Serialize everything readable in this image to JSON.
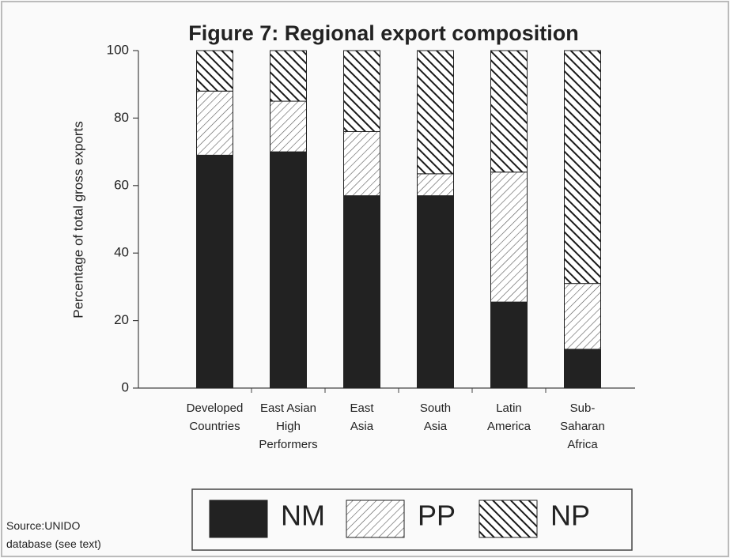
{
  "chart_data": {
    "type": "stacked-bar",
    "title": "Figure 7:  Regional export composition",
    "y_label": "Percentage of total gross exports",
    "categories": [
      "Developed Countries",
      "East Asian High Performers",
      "East Asia",
      "South Asia",
      "Latin America",
      "Sub-Saharan Africa"
    ],
    "series": [
      {
        "name": "NM",
        "color": "#222222",
        "pattern": "solid",
        "values": [
          69,
          70,
          57,
          57,
          25.5,
          11.5
        ]
      },
      {
        "name": "PP",
        "color": "#555555",
        "pattern": "hatch-light",
        "values": [
          19,
          15,
          19,
          6.5,
          38.5,
          19.5
        ]
      },
      {
        "name": "NP",
        "color": "#1a1a1a",
        "pattern": "hatch-heavy",
        "values": [
          12,
          15,
          24,
          36.5,
          36,
          69
        ]
      }
    ],
    "ylim": [
      0,
      100
    ],
    "yticks": [
      0,
      20,
      40,
      60,
      80,
      100
    ],
    "grid": false,
    "legend": "bottom",
    "source": "Source:UNIDO database (see text)"
  }
}
